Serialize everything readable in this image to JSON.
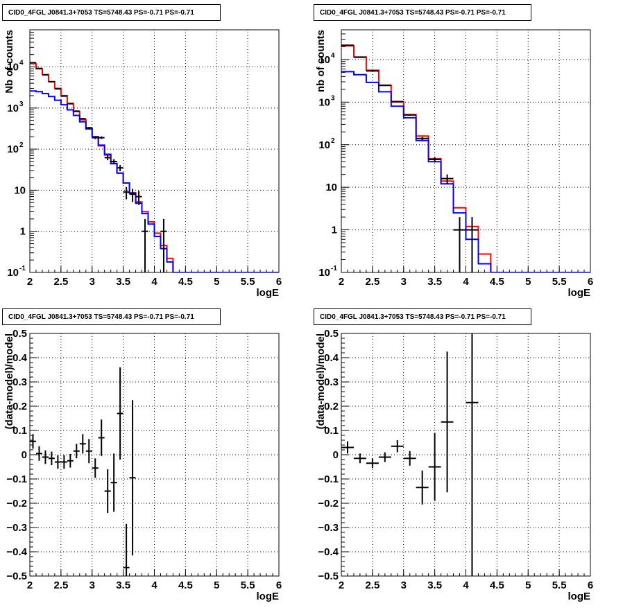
{
  "chart_data": [
    {
      "type": "step-line",
      "title": "CID0_4FGL J0841.3+7053 TS=5748.43 PS=-0.71 PS=-0.71",
      "xlabel": "logE",
      "ylabel": "Nb of counts",
      "xlim": [
        2,
        6
      ],
      "ylim": [
        0.1,
        80000
      ],
      "yscale": "log",
      "grid": true,
      "xticks": [
        "2",
        "2.5",
        "3",
        "3.5",
        "4",
        "4.5",
        "5",
        "5.5",
        "6"
      ],
      "yticks": [
        {
          "v": 0.1,
          "label": "10^-1"
        },
        {
          "v": 1,
          "label": "1"
        },
        {
          "v": 10,
          "label": "10"
        },
        {
          "v": 100,
          "label": "10^2"
        },
        {
          "v": 1000,
          "label": "10^3"
        },
        {
          "v": 10000,
          "label": "10^4"
        }
      ],
      "bin_edges": [
        2.0,
        2.1,
        2.2,
        2.3,
        2.4,
        2.5,
        2.6,
        2.7,
        2.8,
        2.9,
        3.0,
        3.1,
        3.2,
        3.3,
        3.4,
        3.5,
        3.6,
        3.7,
        3.8,
        3.9,
        4.0,
        4.1,
        4.2,
        4.3,
        4.4,
        4.5,
        4.6,
        4.7,
        4.8,
        4.9,
        5.0,
        5.1,
        5.2,
        5.3,
        5.4,
        5.5,
        5.6,
        5.7,
        5.8,
        5.9,
        6.0
      ],
      "series": [
        {
          "color": "#ff0000",
          "values": [
            12000,
            9000,
            6500,
            4400,
            3000,
            2000,
            1300,
            820,
            520,
            320,
            200,
            120,
            72,
            44,
            26,
            15,
            8.7,
            5.2,
            3.0,
            1.7,
            0.9,
            0.45,
            0.22,
            0.1,
            0.1,
            0.1,
            0.1,
            0.1,
            0.1,
            0.1,
            0.1,
            0.1,
            0.1,
            0.1,
            0.1,
            0.1,
            0.1,
            0.1,
            0.1,
            0.1
          ]
        },
        {
          "color": "#0000ff",
          "values": [
            2600,
            2500,
            2250,
            1900,
            1550,
            1200,
            900,
            660,
            460,
            310,
            200,
            125,
            75,
            45,
            26,
            15,
            8.4,
            4.8,
            2.7,
            1.5,
            0.75,
            0.38,
            0.18,
            0.1,
            0.1,
            0.1,
            0.1,
            0.1,
            0.1,
            0.1,
            0.1,
            0.1,
            0.1,
            0.1,
            0.1,
            0.1,
            0.1,
            0.1,
            0.1,
            0.1
          ]
        }
      ],
      "data_points": [
        {
          "x": 2.05,
          "y": 12700,
          "err": 113
        },
        {
          "x": 2.15,
          "y": 9200,
          "err": 96
        },
        {
          "x": 2.25,
          "y": 6400,
          "err": 80
        },
        {
          "x": 2.35,
          "y": 4350,
          "err": 66
        },
        {
          "x": 2.45,
          "y": 2920,
          "err": 54
        },
        {
          "x": 2.55,
          "y": 1950,
          "err": 44
        },
        {
          "x": 2.65,
          "y": 1270,
          "err": 36
        },
        {
          "x": 2.75,
          "y": 840,
          "err": 29
        },
        {
          "x": 2.85,
          "y": 550,
          "err": 23
        },
        {
          "x": 2.95,
          "y": 330,
          "err": 18
        },
        {
          "x": 3.05,
          "y": 190,
          "err": 14
        },
        {
          "x": 3.15,
          "y": 190,
          "err": 14
        },
        {
          "x": 3.25,
          "y": 62,
          "err": 8
        },
        {
          "x": 3.35,
          "y": 50,
          "err": 7
        },
        {
          "x": 3.45,
          "y": 35,
          "err": 6
        },
        {
          "x": 3.55,
          "y": 9,
          "err": 3
        },
        {
          "x": 3.65,
          "y": 8,
          "err": 2.8
        },
        {
          "x": 3.75,
          "y": 7,
          "err": 2.6
        },
        {
          "x": 3.85,
          "y": 1,
          "err": 1
        },
        {
          "x": 4.15,
          "y": 1,
          "err": 1
        }
      ]
    },
    {
      "type": "step-line",
      "title": "CID0_4FGL J0841.3+7053 TS=5748.43 PS=-0.71 PS=-0.71",
      "xlabel": "logE",
      "ylabel": "nb of counts",
      "xlim": [
        2,
        6
      ],
      "ylim": [
        0.1,
        50000
      ],
      "yscale": "log",
      "grid": true,
      "xticks": [
        "2",
        "2.5",
        "3",
        "3.5",
        "4",
        "4.5",
        "5",
        "5.5",
        "6"
      ],
      "yticks": [
        {
          "v": 0.1,
          "label": "10^-1"
        },
        {
          "v": 1,
          "label": "1"
        },
        {
          "v": 10,
          "label": "10"
        },
        {
          "v": 100,
          "label": "10^2"
        },
        {
          "v": 1000,
          "label": "10^3"
        },
        {
          "v": 10000,
          "label": "10^4"
        }
      ],
      "bin_edges": [
        2.0,
        2.2,
        2.4,
        2.6,
        2.8,
        3.0,
        3.2,
        3.4,
        3.6,
        3.8,
        4.0,
        4.2,
        4.4,
        4.6,
        4.8,
        5.0,
        5.2,
        5.4,
        5.6,
        5.8,
        6.0
      ],
      "series": [
        {
          "color": "#ff0000",
          "values": [
            21000,
            11500,
            5600,
            2500,
            1000,
            510,
            160,
            47,
            14,
            3.3,
            1.2,
            0.27,
            0.1,
            0.1,
            0.1,
            0.1,
            0.1,
            0.1,
            0.1,
            0.1
          ]
        },
        {
          "color": "#0000ff",
          "values": [
            5200,
            4400,
            2900,
            1750,
            800,
            430,
            125,
            40,
            12,
            2.5,
            0.6,
            0.16,
            0.1,
            0.1,
            0.1,
            0.1,
            0.1,
            0.1,
            0.1,
            0.1
          ]
        }
      ],
      "data_points": [
        {
          "x": 2.1,
          "y": 21700,
          "err": 147
        },
        {
          "x": 2.3,
          "y": 11300,
          "err": 106
        },
        {
          "x": 2.5,
          "y": 5400,
          "err": 73
        },
        {
          "x": 2.7,
          "y": 2470,
          "err": 50
        },
        {
          "x": 2.9,
          "y": 1030,
          "err": 32
        },
        {
          "x": 3.1,
          "y": 500,
          "err": 22
        },
        {
          "x": 3.3,
          "y": 140,
          "err": 12
        },
        {
          "x": 3.5,
          "y": 45,
          "err": 6.7
        },
        {
          "x": 3.7,
          "y": 16,
          "err": 4
        },
        {
          "x": 3.9,
          "y": 1,
          "err": 1
        },
        {
          "x": 4.1,
          "y": 1,
          "err": 1
        }
      ]
    },
    {
      "type": "scatter-errorbar",
      "title": "CID0_4FGL J0841.3+7053 TS=5748.43 PS=-0.71 PS=-0.71",
      "xlabel": "logE",
      "ylabel": "(data-model)/model",
      "xlim": [
        2,
        6
      ],
      "ylim": [
        -0.5,
        0.5
      ],
      "grid": true,
      "xticks": [
        "2",
        "2.5",
        "3",
        "3.5",
        "4",
        "4.5",
        "5",
        "5.5",
        "6"
      ],
      "yticks": [
        "-0.5",
        "-0.4",
        "-0.3",
        "-0.2",
        "-0.1",
        "0",
        "0.1",
        "0.2",
        "0.3",
        "0.4",
        "0.5"
      ],
      "xerr": 0.05,
      "points": [
        {
          "x": 2.05,
          "y": 0.055,
          "err": 0.03
        },
        {
          "x": 2.15,
          "y": 0.005,
          "err": 0.03
        },
        {
          "x": 2.25,
          "y": -0.01,
          "err": 0.028
        },
        {
          "x": 2.35,
          "y": -0.015,
          "err": 0.028
        },
        {
          "x": 2.45,
          "y": -0.03,
          "err": 0.028
        },
        {
          "x": 2.55,
          "y": -0.03,
          "err": 0.028
        },
        {
          "x": 2.65,
          "y": -0.025,
          "err": 0.028
        },
        {
          "x": 2.75,
          "y": 0.015,
          "err": 0.03
        },
        {
          "x": 2.85,
          "y": 0.045,
          "err": 0.04
        },
        {
          "x": 2.95,
          "y": 0.015,
          "err": 0.05
        },
        {
          "x": 3.05,
          "y": -0.055,
          "err": 0.04
        },
        {
          "x": 3.15,
          "y": 0.07,
          "err": 0.075
        },
        {
          "x": 3.25,
          "y": -0.15,
          "err": 0.09
        },
        {
          "x": 3.35,
          "y": -0.115,
          "err": 0.12
        },
        {
          "x": 3.45,
          "y": 0.17,
          "err": 0.19
        },
        {
          "x": 3.55,
          "y": -0.465,
          "err": 0.18
        },
        {
          "x": 3.65,
          "y": -0.095,
          "err": 0.32
        }
      ]
    },
    {
      "type": "scatter-errorbar",
      "title": "CID0_4FGL J0841.3+7053 TS=5748.43 PS=-0.71 PS=-0.71",
      "xlabel": "logE",
      "ylabel": "(data-model)/model",
      "xlim": [
        2,
        6
      ],
      "ylim": [
        -0.5,
        0.5
      ],
      "grid": true,
      "xticks": [
        "2",
        "2.5",
        "3",
        "3.5",
        "4",
        "4.5",
        "5",
        "5.5",
        "6"
      ],
      "yticks": [
        "-0.5",
        "-0.4",
        "-0.3",
        "-0.2",
        "-0.1",
        "0",
        "0.1",
        "0.2",
        "0.3",
        "0.4",
        "0.5"
      ],
      "xerr": 0.1,
      "points": [
        {
          "x": 2.1,
          "y": 0.03,
          "err": 0.025
        },
        {
          "x": 2.3,
          "y": -0.015,
          "err": 0.02
        },
        {
          "x": 2.5,
          "y": -0.035,
          "err": 0.02
        },
        {
          "x": 2.7,
          "y": -0.01,
          "err": 0.02
        },
        {
          "x": 2.9,
          "y": 0.035,
          "err": 0.025
        },
        {
          "x": 3.1,
          "y": -0.015,
          "err": 0.03
        },
        {
          "x": 3.3,
          "y": -0.135,
          "err": 0.07
        },
        {
          "x": 3.5,
          "y": -0.05,
          "err": 0.14
        },
        {
          "x": 3.7,
          "y": 0.135,
          "err": 0.29
        },
        {
          "x": 4.1,
          "y": 0.215,
          "err": 0.95
        }
      ]
    }
  ]
}
